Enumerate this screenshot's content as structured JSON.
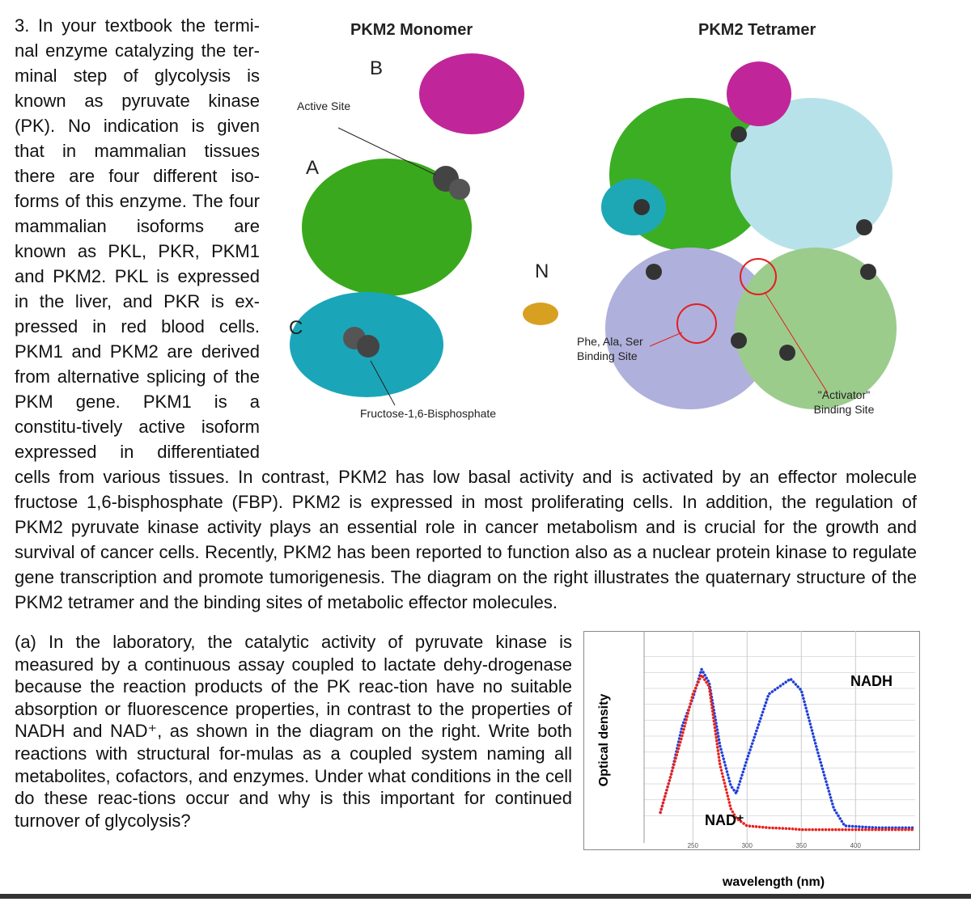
{
  "question": {
    "text": "3. In your textbook the termi-nal enzyme catalyzing the ter-minal step of glycolysis is known as pyruvate kinase (PK). No indication is given that in mammalian tissues there are four different iso-forms of this enzyme. The four mammalian isoforms are known as PKL, PKR, PKM1 and PKM2. PKL is expressed in the liver, and PKR is ex-pressed in red blood cells. PKM1 and PKM2 are derived from alternative splicing of the PKM gene. PKM1 is a constitu-tively active isoform expressed in differentiated cells from various tissues. In contrast, PKM2 has low basal activity and is activated by an effector molecule fructose 1,6-bisphosphate (FBP). PKM2 is expressed in most proliferating cells. In addition, the regulation of PKM2 pyruvate kinase activity plays an essential role in cancer metabolism and is crucial for the growth and survival of cancer cells. Recently, PKM2 has been reported to function also as a nuclear protein kinase to regulate gene transcription and promote tumorigenesis. The diagram on the right illustrates the quaternary structure of the PKM2 tetramer and the binding sites of metabolic effector molecules."
  },
  "figure": {
    "monomer_title": "PKM2 Monomer",
    "tetramer_title": "PKM2 Tetramer",
    "domain_b": "B",
    "active_site": "Active Site",
    "domain_a": "A",
    "n_term": "N",
    "domain_c": "C",
    "fbp": "Fructose-1,6-Bisphosphate",
    "phe_site": "Phe, Ala, Ser Binding Site",
    "activator_site": "\"Activator\" Binding Site"
  },
  "part_a": {
    "label": "(a)",
    "text": "In the laboratory, the catalytic activity of pyruvate kinase is measured by a continuous assay coupled to lactate dehy-drogenase because the reaction products of the PK reac-tion have no suitable absorption or fluorescence properties, in contrast to the properties of NADH and NAD⁺, as shown in the diagram on the right. Write both reactions with structural for-mulas as a coupled system naming all metabolites, cofactors, and enzymes. Under what conditions in the cell do these reac-tions occur and why is this important for continued turnover of glycolysis?"
  },
  "chart_data": {
    "type": "line",
    "x_label": "wavelength (nm)",
    "y_label": "Optical density",
    "x": [
      220,
      230,
      240,
      250,
      258,
      265,
      275,
      285,
      290,
      300,
      320,
      340,
      350,
      365,
      380,
      390,
      420,
      455
    ],
    "series": [
      {
        "name": "NADH",
        "color": "#1f3fd8",
        "values": [
          0.1,
          0.3,
          0.55,
          0.7,
          0.85,
          0.78,
          0.45,
          0.24,
          0.2,
          0.38,
          0.72,
          0.8,
          0.74,
          0.42,
          0.12,
          0.03,
          0.02,
          0.02
        ]
      },
      {
        "name": "NAD⁺",
        "color": "#e8201c",
        "values": [
          0.1,
          0.3,
          0.5,
          0.72,
          0.82,
          0.76,
          0.35,
          0.12,
          0.07,
          0.03,
          0.02,
          0.015,
          0.01,
          0.01,
          0.01,
          0.01,
          0.01,
          0.01
        ]
      }
    ],
    "xlim": [
      205,
      455
    ],
    "ylim": [
      0,
      1
    ],
    "xticks": [
      250,
      300,
      350,
      400
    ],
    "grid": true
  }
}
